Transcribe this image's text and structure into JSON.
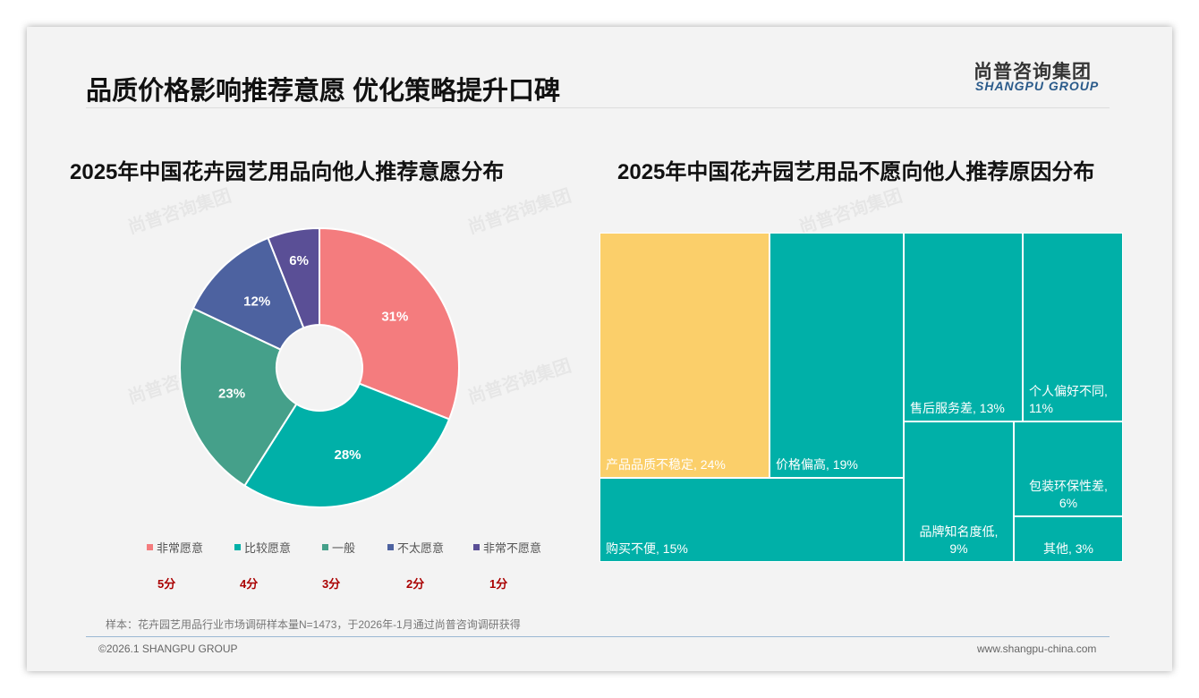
{
  "header": {
    "title": "品质价格影响推荐意愿 优化策略提升口碑",
    "logo_cn": "尚普咨询集团",
    "logo_en": "SHANGPU GROUP"
  },
  "colors": {
    "pink": "#F47C7E",
    "teal": "#00B0A8",
    "green": "#45A08A",
    "blue": "#4D62A0",
    "purple": "#5A4F96",
    "yellow": "#FBCF6A"
  },
  "chart_data": [
    {
      "type": "pie",
      "title": "2025年中国花卉园艺用品向他人推荐意愿分布",
      "donut": true,
      "slices": [
        {
          "label": "非常愿意",
          "value": 31,
          "score": "5分",
          "color": "#F47C7E"
        },
        {
          "label": "比较愿意",
          "value": 28,
          "score": "4分",
          "color": "#00B0A8"
        },
        {
          "label": "一般",
          "value": 23,
          "score": "3分",
          "color": "#45A08A"
        },
        {
          "label": "不太愿意",
          "value": 12,
          "score": "2分",
          "color": "#4D62A0"
        },
        {
          "label": "非常不愿意",
          "value": 6,
          "score": "1分",
          "color": "#5A4F96"
        }
      ],
      "legend_position": "bottom"
    },
    {
      "type": "treemap",
      "title": "2025年中国花卉园艺用品不愿向他人推荐原因分布",
      "items": [
        {
          "label": "产品品质不稳定, 24%",
          "value": 24
        },
        {
          "label": "价格偏高, 19%",
          "value": 19
        },
        {
          "label": "购买不便, 15%",
          "value": 15
        },
        {
          "label": "售后服务差, 13%",
          "value": 13
        },
        {
          "label": "个人偏好不同, 11%",
          "value": 11
        },
        {
          "label": "品牌知名度低, 9%",
          "value": 9
        },
        {
          "label": "包装环保性差, 6%",
          "value": 6
        },
        {
          "label": "其他, 3%",
          "value": 3
        }
      ]
    }
  ],
  "footer": {
    "note": "样本：花卉园艺用品行业市场调研样本量N=1473，于2026年-1月通过尚普咨询调研获得",
    "copyright": "©2026.1 SHANGPU GROUP",
    "website": "www.shangpu-china.com"
  }
}
